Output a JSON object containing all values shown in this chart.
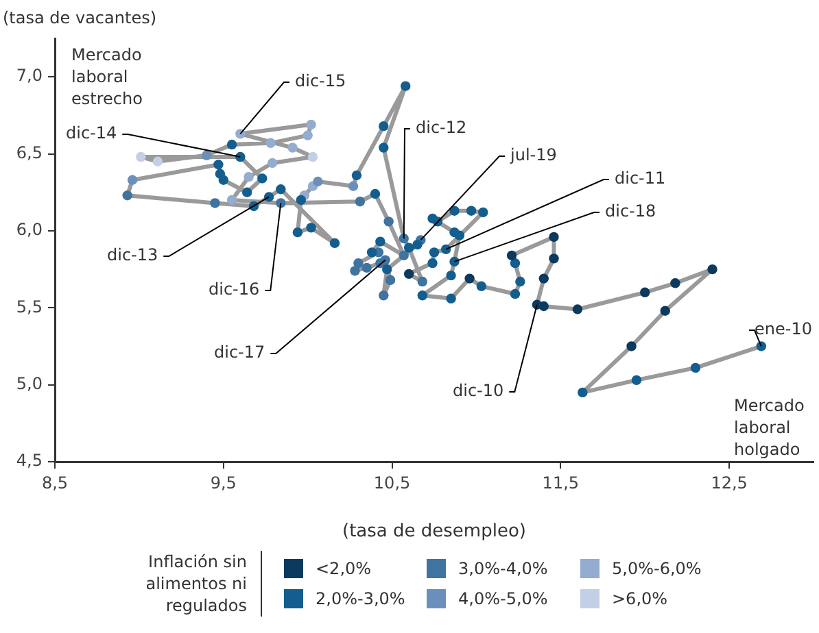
{
  "chart_data": {
    "type": "scatter",
    "xlabel": "(tasa de desempleo)",
    "ylabel": "(tasa de vacantes)",
    "legend_title": "Inflación sin alimentos ni regulados",
    "legend": "bottom",
    "grid": false,
    "xlim": [
      8.5,
      13.0
    ],
    "xticks": [
      {
        "value": 8.5,
        "label": "8,5"
      },
      {
        "value": 9.5,
        "label": "9,5"
      },
      {
        "value": 10.5,
        "label": "10,5"
      },
      {
        "value": 11.5,
        "label": "11,5"
      },
      {
        "value": 12.5,
        "label": "12,5"
      }
    ],
    "ylim": [
      4.5,
      7.25
    ],
    "yticks": [
      {
        "value": 4.5,
        "label": "4,5"
      },
      {
        "value": 5.0,
        "label": "5,0"
      },
      {
        "value": 5.5,
        "label": "5,5"
      },
      {
        "value": 6.0,
        "label": "6,0"
      },
      {
        "value": 6.5,
        "label": "6,5"
      },
      {
        "value": 7.0,
        "label": "7,0"
      }
    ],
    "annotations": [
      {
        "text": "ene-10",
        "x": 12.69,
        "y": 5.25
      },
      {
        "text": "dic-10",
        "x": 11.36,
        "y": 5.52
      },
      {
        "text": "dic-11",
        "x": 10.82,
        "y": 5.88
      },
      {
        "text": "dic-18",
        "x": 10.87,
        "y": 5.8
      },
      {
        "text": "jul-19",
        "x": 10.67,
        "y": 5.94
      },
      {
        "text": "dic-12",
        "x": 10.57,
        "y": 5.95
      },
      {
        "text": "dic-15",
        "x": 9.6,
        "y": 6.63
      },
      {
        "text": "dic-14",
        "x": 9.6,
        "y": 6.48
      },
      {
        "text": "dic-13",
        "x": 9.77,
        "y": 6.22
      },
      {
        "text": "dic-16",
        "x": 9.84,
        "y": 6.18
      },
      {
        "text": "dic-17",
        "x": 10.46,
        "y": 5.81
      },
      "Mercado laboral estrecho",
      "Mercado laboral holgado"
    ],
    "series": [
      {
        "type": "line",
        "color": "#9a9a9a",
        "marker": "none",
        "x": [
          12.69,
          12.3,
          11.95,
          11.63,
          11.92,
          12.12,
          12.4,
          12.18,
          12.0,
          11.6,
          11.4,
          11.36,
          11.4,
          11.46,
          11.46,
          11.21,
          11.23,
          11.26,
          11.23,
          11.03,
          10.96,
          10.85,
          10.68,
          10.85,
          10.87,
          10.9,
          10.87,
          10.74,
          10.77,
          10.87,
          10.97,
          11.04,
          10.82,
          10.75,
          10.74,
          10.6,
          10.68,
          10.6,
          10.57,
          10.45,
          10.58,
          10.45,
          10.29,
          10.27,
          10.06,
          10.03,
          9.98,
          9.96,
          9.94,
          10.02,
          10.16,
          9.84,
          9.77,
          9.68,
          9.45,
          8.93,
          8.96,
          9.47,
          9.48,
          9.5,
          9.64,
          9.73,
          9.6,
          9.01,
          9.11,
          9.4,
          9.55,
          9.78,
          10.0,
          10.02,
          9.6,
          9.91,
          10.03,
          9.79,
          9.65,
          9.55,
          9.84,
          10.31,
          10.4,
          10.48,
          10.57,
          10.43,
          10.38,
          10.42,
          10.3,
          10.28,
          10.35,
          10.43,
          10.46,
          10.49,
          10.45,
          10.47,
          10.65,
          10.67
        ],
        "values": [
          5.25,
          5.11,
          5.03,
          4.95,
          5.25,
          5.48,
          5.75,
          5.66,
          5.6,
          5.49,
          5.51,
          5.52,
          5.69,
          5.82,
          5.96,
          5.84,
          5.79,
          5.67,
          5.59,
          5.64,
          5.69,
          5.56,
          5.58,
          5.71,
          5.8,
          5.97,
          5.99,
          6.08,
          6.06,
          6.13,
          6.13,
          6.12,
          5.88,
          5.86,
          5.79,
          5.72,
          5.67,
          5.89,
          5.95,
          6.54,
          6.94,
          6.68,
          6.36,
          6.29,
          6.32,
          6.29,
          6.23,
          6.2,
          5.99,
          6.02,
          5.92,
          6.27,
          6.22,
          6.16,
          6.18,
          6.23,
          6.33,
          6.43,
          6.37,
          6.33,
          6.25,
          6.34,
          6.48,
          6.48,
          6.45,
          6.49,
          6.56,
          6.57,
          6.62,
          6.69,
          6.63,
          6.54,
          6.48,
          6.44,
          6.35,
          6.2,
          6.18,
          6.19,
          6.24,
          6.06,
          5.84,
          5.93,
          5.86,
          5.86,
          5.79,
          5.74,
          5.76,
          5.79,
          5.81,
          5.68,
          5.58,
          5.75,
          5.91,
          5.94
        ]
      },
      {
        "type": "scatter",
        "name": "<2,0%",
        "color": "#0b3a5e",
        "marker": "circle",
        "x": [
          11.92,
          12.12,
          12.4,
          12.18,
          12.0,
          11.6,
          11.4,
          11.36,
          11.4,
          11.46,
          11.46,
          11.21,
          10.96,
          10.6
        ],
        "values": [
          5.25,
          5.48,
          5.75,
          5.66,
          5.6,
          5.49,
          5.51,
          5.52,
          5.69,
          5.82,
          5.96,
          5.84,
          5.69,
          5.72
        ]
      },
      {
        "type": "scatter",
        "name": "2,0%-3,0%",
        "color": "#135e8e",
        "marker": "circle",
        "x": [
          12.69,
          12.3,
          11.95,
          11.63,
          11.23,
          11.26,
          11.23,
          11.03,
          10.85,
          10.68,
          10.85,
          10.87,
          10.9,
          10.87,
          10.74,
          10.77,
          10.87,
          10.97,
          11.04,
          10.82,
          10.75,
          10.74,
          10.6,
          10.45,
          10.58,
          10.45,
          10.29,
          9.96,
          9.94,
          10.02,
          10.16,
          9.84,
          9.77,
          9.68,
          9.47,
          9.48,
          9.5,
          9.64,
          9.73,
          9.6,
          9.55,
          10.4,
          10.43,
          10.38,
          10.47,
          10.65
        ],
        "values": [
          5.25,
          5.11,
          5.03,
          4.95,
          5.79,
          5.67,
          5.59,
          5.64,
          5.56,
          5.58,
          5.71,
          5.8,
          5.97,
          5.99,
          6.08,
          6.06,
          6.13,
          6.13,
          6.12,
          5.88,
          5.86,
          5.79,
          5.89,
          6.54,
          6.94,
          6.68,
          6.36,
          6.2,
          5.99,
          6.02,
          5.92,
          6.27,
          6.22,
          6.16,
          6.43,
          6.37,
          6.33,
          6.25,
          6.34,
          6.48,
          6.56,
          6.24,
          5.93,
          5.86,
          5.75,
          5.91
        ]
      },
      {
        "type": "scatter",
        "name": "3,0%-4,0%",
        "color": "#3f73a0",
        "marker": "circle",
        "x": [
          10.68,
          10.57,
          9.45,
          8.93,
          9.84,
          10.31,
          10.48,
          10.57,
          10.42,
          10.3,
          10.28,
          10.35,
          10.43,
          10.46,
          10.49,
          10.45,
          10.67
        ],
        "values": [
          5.67,
          5.95,
          6.18,
          6.23,
          6.18,
          6.19,
          6.06,
          5.84,
          5.86,
          5.79,
          5.74,
          5.76,
          5.79,
          5.81,
          5.68,
          5.58,
          5.94
        ]
      },
      {
        "type": "scatter",
        "name": "4,0%-5,0%",
        "color": "#6a8fba",
        "marker": "circle",
        "x": [
          10.27,
          10.06,
          8.96,
          9.4
        ],
        "values": [
          6.29,
          6.32,
          6.33,
          6.49
        ]
      },
      {
        "type": "scatter",
        "name": "5,0%-6,0%",
        "color": "#93acd0",
        "marker": "circle",
        "x": [
          10.03,
          9.98,
          9.78,
          10.0,
          10.02,
          9.6,
          9.91,
          9.79,
          9.65,
          9.55
        ],
        "values": [
          6.29,
          6.23,
          6.57,
          6.62,
          6.69,
          6.63,
          6.54,
          6.44,
          6.35,
          6.2
        ]
      },
      {
        "type": "scatter",
        "name": ">6,0%",
        "color": "#c2cfe4",
        "marker": "circle",
        "x": [
          9.01,
          9.11,
          10.03
        ],
        "values": [
          6.48,
          6.45,
          6.48
        ]
      }
    ]
  }
}
